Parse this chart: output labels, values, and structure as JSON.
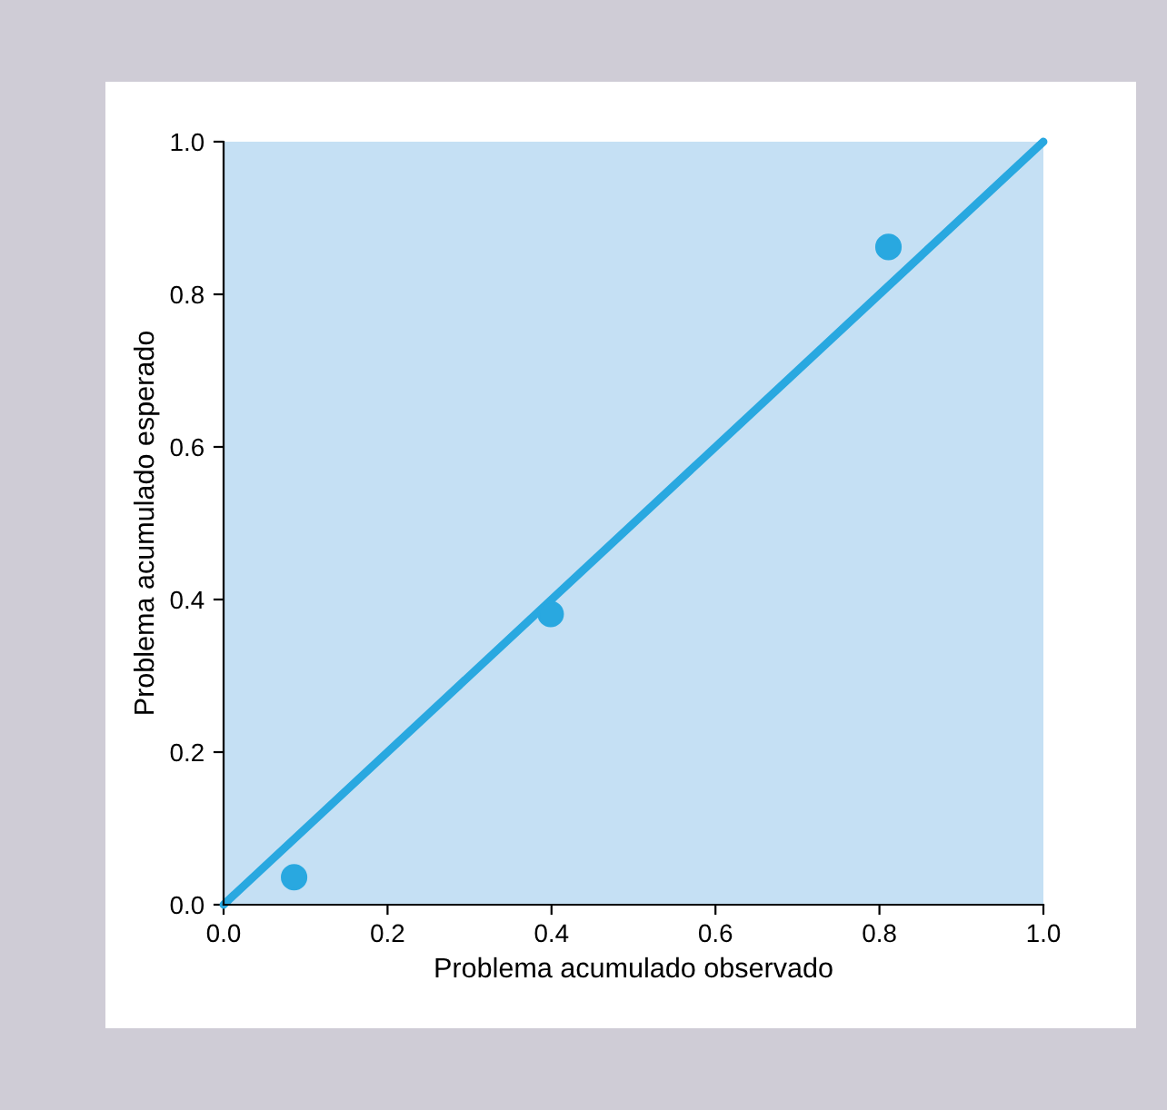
{
  "chart_data": {
    "type": "scatter",
    "xlabel": "Problema acumulado observado",
    "ylabel": "Problema acumulado esperado",
    "series": [
      {
        "color": "#29a8e0",
        "x": [
          0.086,
          0.399,
          0.811
        ],
        "values": [
          0.036,
          0.381,
          0.862
        ],
        "marker": "circle"
      },
      {
        "type": "line",
        "color": "#29a8e0",
        "x": [
          0.0,
          1.0
        ],
        "values": [
          0.0,
          1.0
        ],
        "marker": "none",
        "line_style": "solid"
      }
    ],
    "xlim": [
      0.0,
      1.0
    ],
    "ylim": [
      0.0,
      1.0
    ],
    "xticks": [
      {
        "value": 0,
        "label": "0.0"
      },
      0.2,
      0.4,
      0.6,
      0.8,
      {
        "value": 1,
        "label": "1.0"
      }
    ],
    "yticks": [
      {
        "value": 0,
        "label": "0.0"
      },
      0.2,
      0.4,
      0.6,
      0.8,
      {
        "value": 1,
        "label": "1.0"
      }
    ],
    "grid": false
  }
}
